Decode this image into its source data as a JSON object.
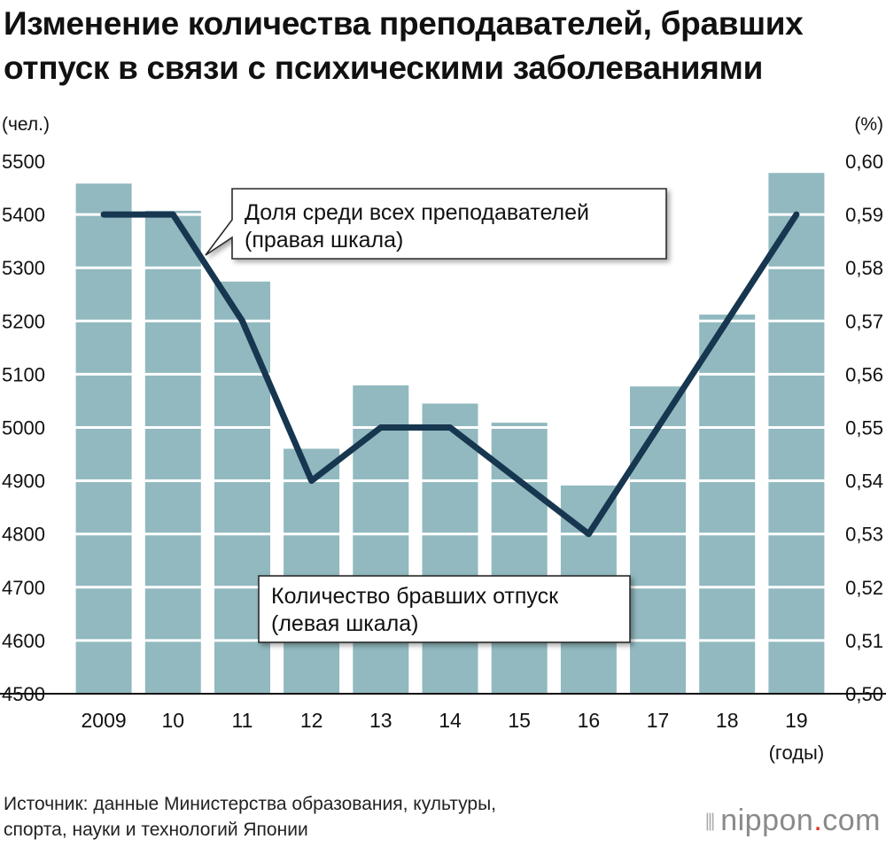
{
  "title": {
    "line1": "Изменение количества преподавателей, бравших",
    "line2": "отпуск в связи с психическими заболеваниями"
  },
  "colors": {
    "bar": "#91b9bf",
    "line": "#17364f",
    "axis": "#111111"
  },
  "chart_data": {
    "type": "bar+line",
    "categories": [
      "2009",
      "10",
      "11",
      "12",
      "13",
      "14",
      "15",
      "16",
      "17",
      "18",
      "19"
    ],
    "series": [
      {
        "name": "Количество бравших отпуск (левая шкала)",
        "type": "bar",
        "axis": "left",
        "values": [
          5458,
          5407,
          5274,
          4960,
          5079,
          5045,
          5009,
          4891,
          5077,
          5212,
          5478
        ]
      },
      {
        "name": "Доля среди всех преподавателей (правая шкала)",
        "type": "line",
        "axis": "right",
        "values": [
          0.59,
          0.59,
          0.57,
          0.54,
          0.55,
          0.55,
          0.54,
          0.53,
          0.55,
          0.57,
          0.59
        ]
      }
    ],
    "left_axis": {
      "unit": "(чел.)",
      "ylim": [
        4500,
        5500
      ],
      "ticks": [
        "5500",
        "5400",
        "5300",
        "5200",
        "5100",
        "5000",
        "4900",
        "4800",
        "4700",
        "4600",
        "4500"
      ]
    },
    "right_axis": {
      "unit": "(%)",
      "ylim": [
        0.5,
        0.6
      ],
      "ticks": [
        "0,60",
        "0,59",
        "0,58",
        "0,57",
        "0,56",
        "0,55",
        "0,54",
        "0,53",
        "0,52",
        "0,51",
        "0,50"
      ]
    },
    "x_unit": "(годы)",
    "annotations": {
      "line_label": [
        "Доля среди всех преподавателей",
        "(правая шкала)"
      ],
      "bar_label": [
        "Количество бравших отпуск",
        "(левая шкала)"
      ]
    }
  },
  "source": {
    "line1": "Источник: данные Министерства образования, культуры,",
    "line2": "спорта, науки и технологий Японии"
  },
  "logo": {
    "mark": "⦀",
    "name": "nippon",
    "dot": ".",
    "tld": "com"
  }
}
